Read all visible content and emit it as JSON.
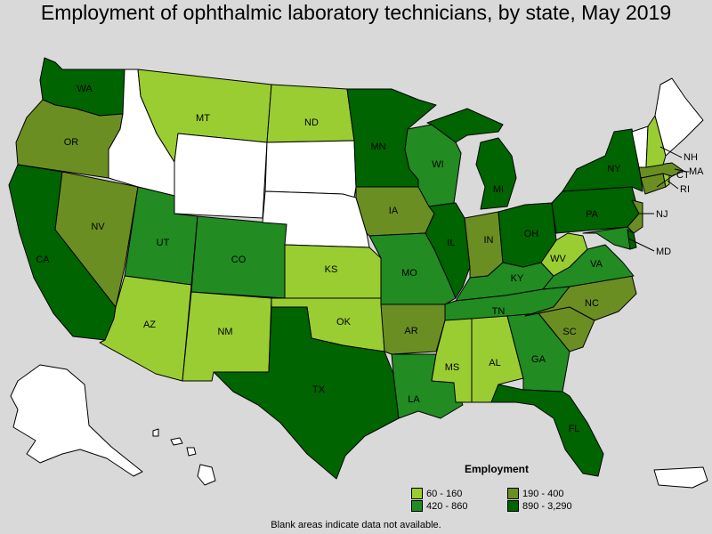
{
  "title": "Employment of ophthalmic laboratory technicians, by state, May 2019",
  "legend": {
    "title": "Employment",
    "items": [
      {
        "label": "60 - 160",
        "color": "#9acd32"
      },
      {
        "label": "190 - 400",
        "color": "#6b8e23"
      },
      {
        "label": "420 - 860",
        "color": "#228b22"
      },
      {
        "label": "890 - 3,290",
        "color": "#006400"
      }
    ]
  },
  "footnote": "Blank areas indicate data not available.",
  "colors": {
    "no_data": "#ffffff",
    "tier1": "#9acd32",
    "tier2": "#6b8e23",
    "tier3": "#228b22",
    "tier4": "#006400",
    "background": "#d9d9d9"
  },
  "states": {
    "WA": "WA",
    "OR": "OR",
    "CA": "CA",
    "NV": "NV",
    "ID": "",
    "MT": "MT",
    "WY": "",
    "UT": "UT",
    "AZ": "AZ",
    "CO": "CO",
    "NM": "NM",
    "ND": "ND",
    "SD": "",
    "NE": "",
    "KS": "KS",
    "OK": "OK",
    "TX": "TX",
    "MN": "MN",
    "IA": "IA",
    "MO": "MO",
    "AR": "AR",
    "LA": "LA",
    "WI": "WI",
    "IL": "IL",
    "MI": "MI",
    "IN": "IN",
    "OH": "OH",
    "KY": "KY",
    "TN": "TN",
    "MS": "MS",
    "AL": "AL",
    "GA": "GA",
    "FL": "FL",
    "SC": "SC",
    "NC": "NC",
    "VA": "VA",
    "WV": "WV",
    "PA": "PA",
    "NY": "NY",
    "NJ": "NJ",
    "MD": "MD",
    "CT": "CT",
    "RI": "RI",
    "MA": "MA",
    "NH": "NH",
    "VT": "",
    "ME": "",
    "AK": "",
    "HI": ""
  }
}
